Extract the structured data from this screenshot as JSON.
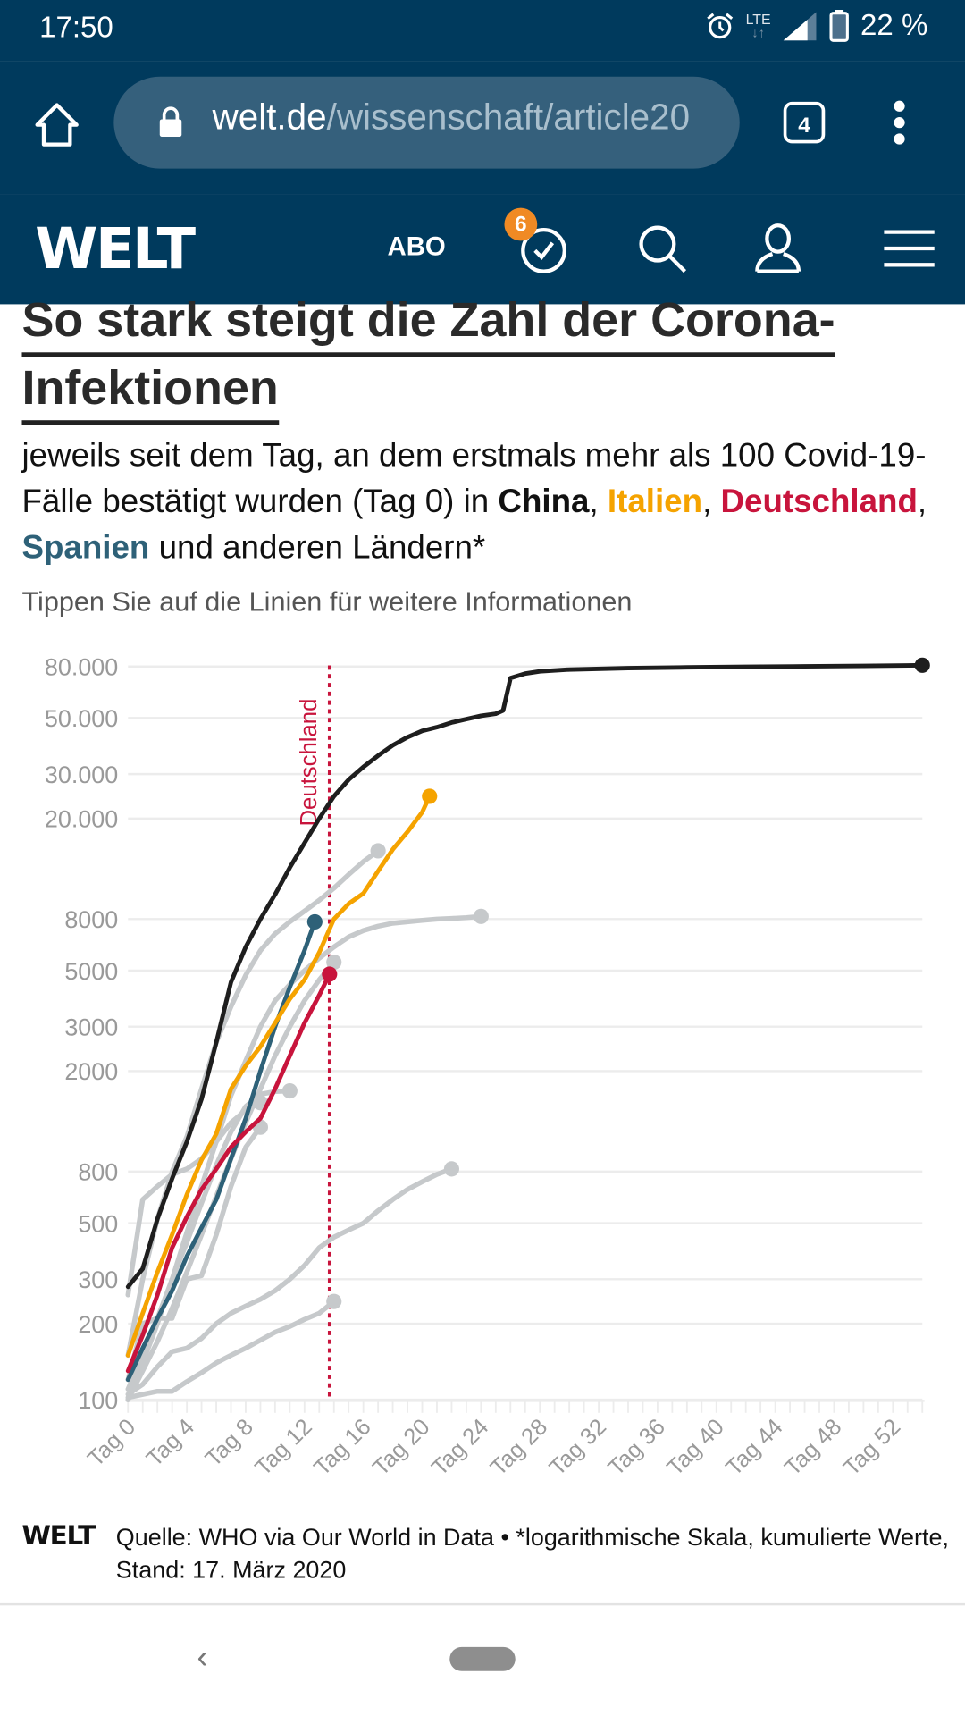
{
  "status_bar": {
    "time": "17:50",
    "network": "LTE",
    "battery": "22 %"
  },
  "browser": {
    "url_host": "welt.de",
    "url_path": "/wissenschaft/article20",
    "tab_count": "4"
  },
  "site_nav": {
    "logo": "WELT",
    "abo_label": "ABO",
    "history_badge": "6"
  },
  "article": {
    "headline_line1": "So stark steigt die Zahl der Corona-",
    "headline_line2": "Infektionen",
    "subtitle_part1": "jeweils seit dem Tag, an dem erstmals mehr als 100 Covid-19-Fälle bestätigt wurden (Tag 0) in ",
    "subtitle_china": "China",
    "subtitle_sep1": ", ",
    "subtitle_italy": "Italien",
    "subtitle_sep2": ", ",
    "subtitle_germany": "Deutschland",
    "subtitle_sep3": ", ",
    "subtitle_spain": "Spanien",
    "subtitle_part2": " und anderen Ländern*",
    "hint": "Tippen Sie auf die Linien für weitere Informationen"
  },
  "colors": {
    "header_bg": "#003a5d",
    "china": "#1e1e1e",
    "italy": "#f5a300",
    "germany": "#c8143c",
    "spain": "#2e6178",
    "other": "#c6c9cb",
    "grid": "#ececec",
    "tick_text": "#999999"
  },
  "chart_data": {
    "type": "line",
    "title": "So stark steigt die Zahl der Corona-Infektionen",
    "xlabel": "",
    "ylabel": "",
    "yscale": "log",
    "ylim": [
      100,
      80000
    ],
    "xlim": [
      0,
      54
    ],
    "y_ticks": [
      100,
      200,
      300,
      500,
      800,
      2000,
      3000,
      5000,
      8000,
      20000,
      30000,
      50000,
      80000
    ],
    "y_tick_labels": [
      "100",
      "200",
      "300",
      "500",
      "800",
      "2000",
      "3000",
      "5000",
      "8000",
      "20.000",
      "30.000",
      "50.000",
      "80.000"
    ],
    "x_ticks": [
      0,
      4,
      8,
      12,
      16,
      20,
      24,
      28,
      32,
      36,
      40,
      44,
      48,
      52
    ],
    "x_tick_labels": [
      "Tag 0",
      "Tag 4",
      "Tag 8",
      "Tag 12",
      "Tag 16",
      "Tag 20",
      "Tag 24",
      "Tag 28",
      "Tag 32",
      "Tag 36",
      "Tag 40",
      "Tag 44",
      "Tag 48",
      "Tag 52"
    ],
    "grid": true,
    "annotation": {
      "label": "Deutschland",
      "x": 13.7,
      "style": "dotted-vertical"
    },
    "series": [
      {
        "name": "other-1",
        "group": "other",
        "x": [
          0,
          1,
          2,
          3,
          4,
          5,
          6,
          7,
          8,
          9,
          10,
          11,
          12,
          13,
          14,
          15,
          16,
          17
        ],
        "y": [
          150,
          300,
          520,
          800,
          1100,
          1700,
          2600,
          3600,
          4800,
          6000,
          7000,
          7800,
          8600,
          9500,
          10600,
          12000,
          13500,
          14900
        ]
      },
      {
        "name": "other-2",
        "group": "other",
        "x": [
          0,
          1,
          2,
          3,
          4,
          5,
          6,
          7,
          8,
          9,
          10,
          11,
          12,
          13,
          14,
          15,
          16,
          17,
          18,
          19,
          20,
          21,
          22,
          23,
          24
        ],
        "y": [
          100,
          140,
          200,
          300,
          460,
          700,
          1050,
          1600,
          2200,
          3000,
          3800,
          4400,
          5000,
          5600,
          6200,
          6800,
          7200,
          7500,
          7700,
          7800,
          7900,
          8000,
          8050,
          8100,
          8200
        ]
      },
      {
        "name": "other-3",
        "group": "other",
        "x": [
          0,
          1,
          2,
          3,
          4,
          5,
          6,
          7,
          8,
          9,
          10,
          11,
          12,
          13,
          14
        ],
        "y": [
          100,
          130,
          170,
          230,
          320,
          450,
          640,
          900,
          1250,
          1700,
          2300,
          3000,
          3800,
          4600,
          5400
        ]
      },
      {
        "name": "other-4",
        "group": "other",
        "x": [
          0,
          1,
          2,
          3,
          4,
          5,
          6,
          7,
          8,
          9,
          10,
          11
        ],
        "y": [
          110,
          150,
          210,
          300,
          420,
          600,
          850,
          1150,
          1450,
          1620,
          1660,
          1670
        ]
      },
      {
        "name": "other-5",
        "group": "other",
        "x": [
          0,
          1,
          2,
          3,
          4,
          5,
          6,
          7,
          8,
          9,
          10,
          11,
          12,
          13,
          14,
          15,
          16,
          17,
          18,
          19,
          20,
          21,
          22
        ],
        "y": [
          105,
          115,
          135,
          155,
          160,
          175,
          200,
          220,
          235,
          250,
          270,
          300,
          340,
          400,
          440,
          470,
          500,
          560,
          620,
          680,
          730,
          780,
          820
        ]
      },
      {
        "name": "other-6",
        "group": "other",
        "x": [
          0,
          1,
          2,
          3,
          4,
          5,
          6,
          7,
          8,
          9,
          10,
          11,
          12,
          13,
          14
        ],
        "y": [
          102,
          105,
          108,
          108,
          118,
          128,
          140,
          150,
          160,
          172,
          185,
          195,
          208,
          220,
          245
        ]
      },
      {
        "name": "other-7",
        "group": "other",
        "x": [
          0,
          1,
          2,
          3,
          4,
          5,
          6,
          7,
          8,
          9
        ],
        "y": [
          260,
          620,
          700,
          780,
          820,
          900,
          1050,
          1250,
          1400,
          1500
        ]
      },
      {
        "name": "other-8",
        "group": "other",
        "x": [
          0,
          1,
          2,
          3,
          4,
          5,
          6,
          7,
          8,
          9
        ],
        "y": [
          120,
          200,
          210,
          210,
          300,
          310,
          450,
          700,
          1000,
          1200
        ]
      },
      {
        "name": "China",
        "group": "china",
        "x": [
          0,
          1,
          2,
          3,
          4,
          5,
          6,
          7,
          8,
          9,
          10,
          11,
          12,
          13,
          14,
          15,
          16,
          17,
          18,
          19,
          20,
          21,
          22,
          23,
          24,
          25,
          25.5,
          26,
          27,
          28,
          30,
          34,
          38,
          42,
          46,
          50,
          54
        ],
        "y": [
          280,
          330,
          520,
          750,
          1050,
          1550,
          2600,
          4500,
          6200,
          8000,
          10000,
          12800,
          16000,
          20000,
          24500,
          28500,
          32000,
          35500,
          39000,
          42000,
          44500,
          46000,
          48000,
          49500,
          51000,
          52000,
          53500,
          72000,
          75000,
          76500,
          77800,
          78800,
          79400,
          79800,
          80100,
          80400,
          80900
        ]
      },
      {
        "name": "Spanien",
        "group": "spain",
        "x": [
          0,
          1,
          2,
          3,
          4,
          5,
          6,
          7,
          8,
          9,
          10,
          11,
          12,
          12.7
        ],
        "y": [
          120,
          160,
          210,
          270,
          370,
          480,
          620,
          900,
          1300,
          2000,
          3000,
          4300,
          6000,
          7800
        ]
      },
      {
        "name": "Deutschland",
        "group": "germany",
        "x": [
          0,
          1,
          2,
          3,
          4,
          5,
          6,
          7,
          8,
          9,
          10,
          11,
          12,
          13,
          13.7
        ],
        "y": [
          130,
          180,
          260,
          400,
          530,
          680,
          820,
          1000,
          1150,
          1300,
          1700,
          2300,
          3100,
          4000,
          4840
        ]
      },
      {
        "name": "Italien",
        "group": "italy",
        "x": [
          0,
          1,
          2,
          3,
          4,
          5,
          6,
          7,
          8,
          9,
          10,
          11,
          12,
          13,
          14,
          15,
          16,
          17,
          18,
          19,
          20,
          20.5
        ],
        "y": [
          150,
          220,
          320,
          450,
          650,
          890,
          1130,
          1700,
          2100,
          2500,
          3100,
          3860,
          4600,
          5900,
          8000,
          9200,
          10100,
          12400,
          15100,
          17700,
          21200,
          24500
        ]
      }
    ]
  },
  "footer": {
    "logo": "WELT",
    "source": "Quelle: WHO via Our World in Data • *logarithmische Skala, kumulierte Werte, Stand: 17. März 2020"
  }
}
